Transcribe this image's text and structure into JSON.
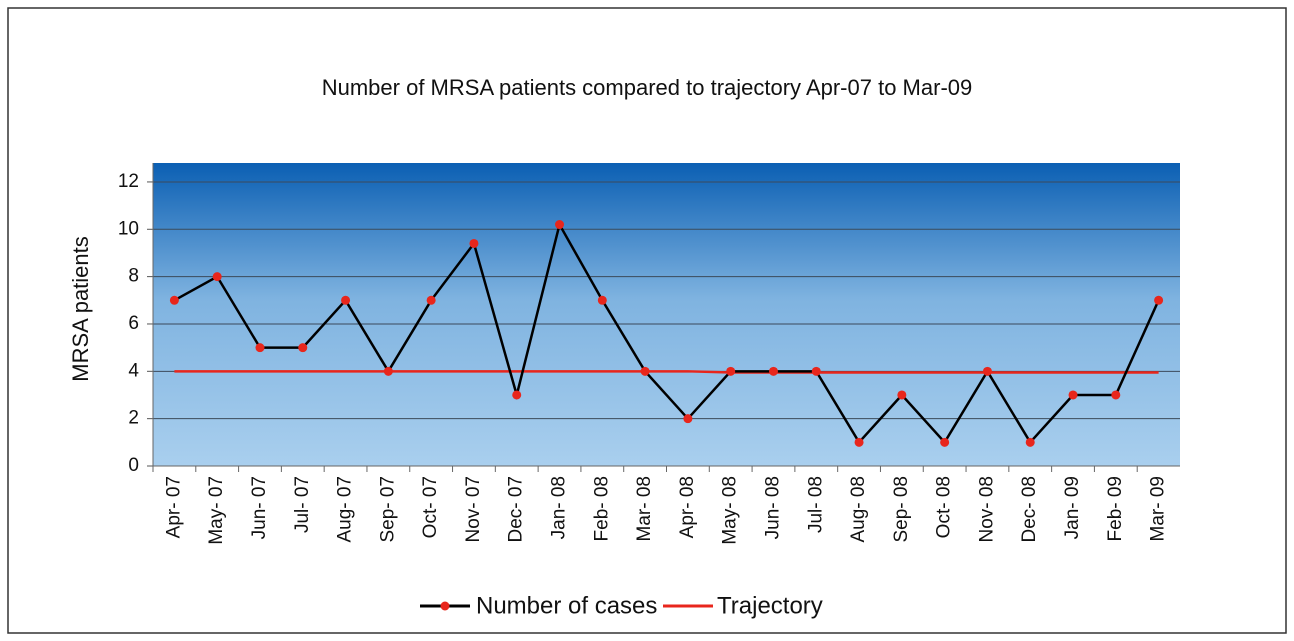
{
  "chart_data": {
    "type": "line",
    "title": "Number of MRSA patients compared to trajectory Apr-07 to Mar-09",
    "y_label": "MRSA patients",
    "categories": [
      "Apr- 07",
      "May- 07",
      "Jun- 07",
      "Jul- 07",
      "Aug- 07",
      "Sep- 07",
      "Oct- 07",
      "Nov- 07",
      "Dec- 07",
      "Jan- 08",
      "Feb- 08",
      "Mar- 08",
      "Apr- 08",
      "May- 08",
      "Jun- 08",
      "Jul- 08",
      "Aug- 08",
      "Sep- 08",
      "Oct- 08",
      "Nov- 08",
      "Dec- 08",
      "Jan- 09",
      "Feb- 09",
      "Mar- 09"
    ],
    "series": [
      {
        "name": "Number of cases",
        "color": "#000000",
        "marker_color": "#e8261c",
        "values": [
          7,
          8,
          5,
          5,
          7,
          4,
          7,
          9.4,
          3,
          10.2,
          7,
          4,
          2,
          4,
          4,
          4,
          1,
          3,
          1,
          4,
          1,
          3,
          3,
          7
        ]
      },
      {
        "name": "Trajectory",
        "color": "#e8261c",
        "values": [
          4,
          4,
          4,
          4,
          4,
          4,
          4,
          4,
          4,
          4,
          4,
          4,
          4,
          3.95,
          3.95,
          3.95,
          3.95,
          3.95,
          3.95,
          3.95,
          3.95,
          3.95,
          3.95,
          3.95
        ]
      }
    ],
    "ylim": [
      0,
      12.8
    ],
    "yticks": [
      0,
      2,
      4,
      6,
      8,
      10,
      12
    ],
    "grid": true,
    "legend": "bottom"
  }
}
